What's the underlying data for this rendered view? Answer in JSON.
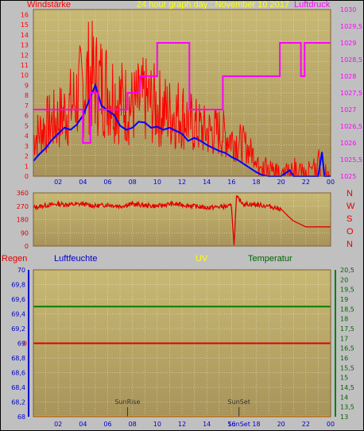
{
  "colors": {
    "wind": "#ff0000",
    "windAvg": "#0000ff",
    "pressure": "#ff00ff",
    "direction": "#e00000",
    "humidity": "#008000",
    "rain": "#e00000",
    "uv": "#ffff00",
    "frame_bg": "#c0c0c0",
    "plot_top": "#c8b974",
    "plot_bottom": "#a8945a"
  },
  "header": {
    "wind_label": "Windstärke",
    "title": "24 hour graph day : November 10 2017",
    "pressure_label": "Luftdruck"
  },
  "middle": {
    "compass": [
      "N",
      "W",
      "S",
      "O",
      "N"
    ]
  },
  "bottom_header": {
    "rain_label": "Regen",
    "humidity_label": "Luftfeuchte",
    "uv_label": "UV",
    "temp_label": "Temperatur"
  },
  "annotations": {
    "sunrise": "SunRise",
    "sunset": "SunSet",
    "sunset_axis": "SunSet"
  },
  "chart_data": [
    {
      "type": "line",
      "name": "wind",
      "x_hours_ticks": [
        "02",
        "04",
        "06",
        "08",
        "10",
        "12",
        "14",
        "16",
        "18",
        "20",
        "22",
        "00"
      ],
      "y_left_ticks": [
        "0",
        "1",
        "2",
        "3",
        "4",
        "5",
        "6",
        "7",
        "8",
        "9",
        "10",
        "11",
        "12",
        "13",
        "14",
        "15",
        "16"
      ],
      "y_left_range": [
        0,
        16.5
      ],
      "y_right_ticks": [
        "1025",
        "1025,5",
        "1026",
        "1026,5",
        "1027",
        "1027,5",
        "1028",
        "1028,5",
        "1029",
        "1029,5",
        "1030"
      ],
      "y_right_range": [
        1025,
        1030
      ],
      "x_range": [
        0,
        24
      ],
      "pressure_steps": [
        [
          0,
          1027
        ],
        [
          4.0,
          1026
        ],
        [
          4.6,
          1027.5
        ],
        [
          5.2,
          1027
        ],
        [
          7.6,
          1027.5
        ],
        [
          8.6,
          1028
        ],
        [
          9.6,
          1028
        ],
        [
          10.0,
          1029
        ],
        [
          12.6,
          1027
        ],
        [
          14.2,
          1027
        ],
        [
          15.3,
          1028
        ],
        [
          16.5,
          1028
        ],
        [
          18.0,
          1028
        ],
        [
          18.8,
          1028
        ],
        [
          19.8,
          1028
        ],
        [
          19.9,
          1029
        ],
        [
          21.3,
          1029
        ],
        [
          21.6,
          1028
        ],
        [
          21.9,
          1029
        ],
        [
          24,
          1029
        ]
      ],
      "wind_avg": [
        [
          0,
          1.5
        ],
        [
          0.5,
          2.2
        ],
        [
          1.0,
          2.8
        ],
        [
          1.5,
          3.6
        ],
        [
          2.0,
          4.2
        ],
        [
          2.5,
          4.8
        ],
        [
          3.0,
          4.6
        ],
        [
          3.5,
          5.1
        ],
        [
          4.0,
          6.0
        ],
        [
          4.5,
          7.5
        ],
        [
          5.0,
          9.0
        ],
        [
          5.5,
          7.0
        ],
        [
          6.0,
          6.5
        ],
        [
          6.5,
          6.1
        ],
        [
          7.0,
          5.0
        ],
        [
          7.5,
          4.6
        ],
        [
          8.0,
          4.8
        ],
        [
          8.5,
          5.4
        ],
        [
          9.0,
          5.3
        ],
        [
          9.5,
          4.8
        ],
        [
          10.0,
          4.9
        ],
        [
          10.5,
          4.6
        ],
        [
          11.0,
          4.8
        ],
        [
          11.5,
          4.5
        ],
        [
          12.0,
          4.2
        ],
        [
          12.5,
          3.5
        ],
        [
          13.0,
          3.8
        ],
        [
          13.5,
          3.5
        ],
        [
          14.0,
          3.1
        ],
        [
          14.5,
          2.8
        ],
        [
          15.0,
          2.5
        ],
        [
          15.5,
          2.3
        ],
        [
          16.0,
          1.9
        ],
        [
          16.5,
          1.6
        ],
        [
          17.0,
          1.2
        ],
        [
          17.5,
          0.8
        ],
        [
          18.0,
          0.4
        ],
        [
          18.5,
          0.1
        ],
        [
          19.0,
          0.0
        ],
        [
          20.0,
          0.0
        ],
        [
          20.7,
          0.6
        ],
        [
          21.0,
          0.0
        ],
        [
          23.0,
          0.0
        ],
        [
          23.3,
          2.4
        ],
        [
          23.5,
          0.0
        ],
        [
          24,
          0.0
        ]
      ],
      "wind_gust_envelope": [
        [
          0,
          6
        ],
        [
          1,
          8
        ],
        [
          2,
          9
        ],
        [
          3,
          11
        ],
        [
          4,
          14
        ],
        [
          4.5,
          16
        ],
        [
          5,
          15
        ],
        [
          6,
          14
        ],
        [
          7,
          12
        ],
        [
          8,
          11
        ],
        [
          9,
          12
        ],
        [
          10,
          11
        ],
        [
          11,
          10
        ],
        [
          12,
          10
        ],
        [
          13,
          8
        ],
        [
          14,
          7
        ],
        [
          15,
          7
        ],
        [
          16,
          6
        ],
        [
          17,
          5
        ],
        [
          18,
          3
        ],
        [
          19,
          2
        ],
        [
          20,
          1
        ],
        [
          21,
          2
        ],
        [
          22,
          1
        ],
        [
          23,
          3
        ],
        [
          24,
          0
        ]
      ]
    },
    {
      "type": "line",
      "name": "direction",
      "y_ticks": [
        "0",
        "90",
        "180",
        "270",
        "360"
      ],
      "y_range": [
        0,
        360
      ],
      "x_range": [
        0,
        24
      ],
      "values": [
        [
          0,
          260
        ],
        [
          1,
          275
        ],
        [
          2,
          285
        ],
        [
          3,
          280
        ],
        [
          4,
          285
        ],
        [
          5,
          270
        ],
        [
          6,
          280
        ],
        [
          7,
          270
        ],
        [
          8,
          285
        ],
        [
          9,
          275
        ],
        [
          10,
          270
        ],
        [
          11,
          285
        ],
        [
          12,
          280
        ],
        [
          13,
          270
        ],
        [
          14,
          260
        ],
        [
          15,
          265
        ],
        [
          16,
          270
        ],
        [
          16.2,
          0
        ],
        [
          16.4,
          330
        ],
        [
          17,
          285
        ],
        [
          18,
          280
        ],
        [
          19,
          270
        ],
        [
          20,
          250
        ],
        [
          20.6,
          200
        ],
        [
          21,
          170
        ],
        [
          22,
          130
        ],
        [
          23,
          130
        ],
        [
          24,
          130
        ]
      ]
    },
    {
      "type": "line",
      "name": "bottom",
      "y_left_ticks": [
        "68",
        "68,2",
        "68,4",
        "68,6",
        "68,8",
        "69",
        "69,2",
        "69,4",
        "69,6",
        "69,8",
        "70"
      ],
      "y_left_range": [
        68,
        70
      ],
      "y_right_ticks": [
        "13",
        "13,5",
        "14",
        "14,5",
        "15",
        "15,5",
        "16",
        "16,5",
        "17",
        "17,5",
        "18",
        "18,5",
        "19",
        "19,5",
        "20",
        "20,5"
      ],
      "y_right_range": [
        13,
        20.5
      ],
      "rain_label": "0",
      "humidity_value": 69.5,
      "rain_value": 69.0,
      "temp_value": 13.0,
      "sunrise_hour": 7.6,
      "sunset_hour": 16.6
    }
  ]
}
